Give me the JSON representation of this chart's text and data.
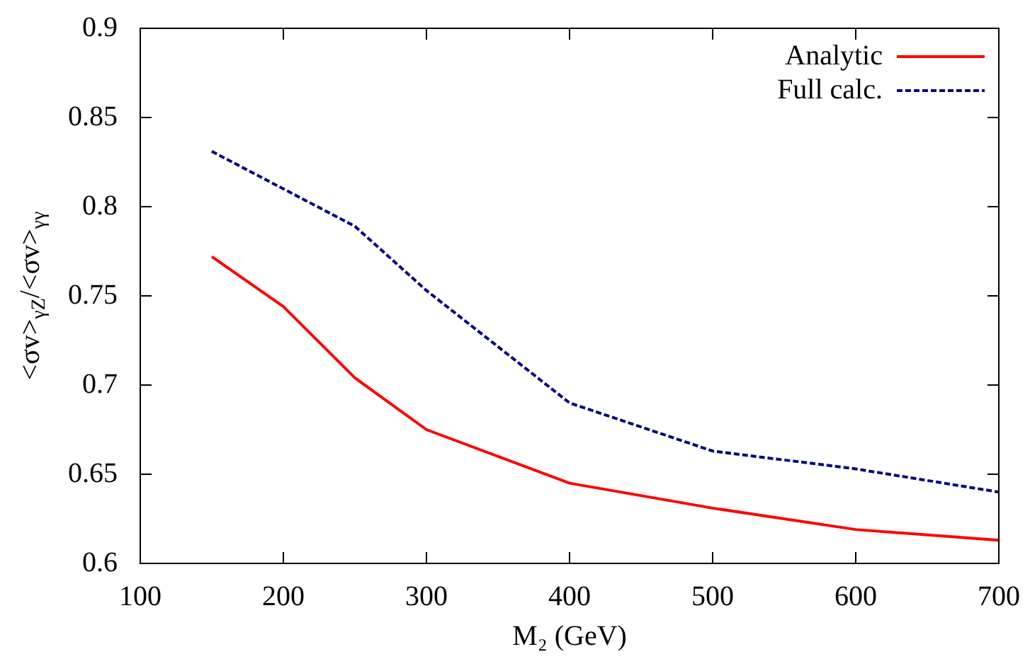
{
  "chart_data": {
    "type": "line",
    "xlabel": "M₂ (GeV)",
    "ylabel": "<σv>$_{γZ}$/<σv>$_{γγ}$",
    "x": [
      150,
      200,
      250,
      300,
      400,
      500,
      600,
      700
    ],
    "series": [
      {
        "name": "Analytic",
        "color": "#ff0000",
        "line_style": "solid",
        "values": [
          0.772,
          0.744,
          0.704,
          0.675,
          0.645,
          0.631,
          0.619,
          0.613
        ]
      },
      {
        "name": "Full calc.",
        "color": "#000080",
        "line_style": "dashed",
        "values": [
          0.831,
          0.81,
          0.789,
          0.753,
          0.69,
          0.663,
          0.653,
          0.64
        ]
      }
    ],
    "xlim": [
      100,
      700
    ],
    "xticks": [
      100,
      200,
      300,
      400,
      500,
      600,
      700
    ],
    "ylim": [
      0.6,
      0.9
    ],
    "yticks": [
      0.6,
      0.65,
      0.7,
      0.75,
      0.8,
      0.85,
      0.9
    ],
    "grid": false,
    "legend": "top right",
    "marker": "none"
  }
}
